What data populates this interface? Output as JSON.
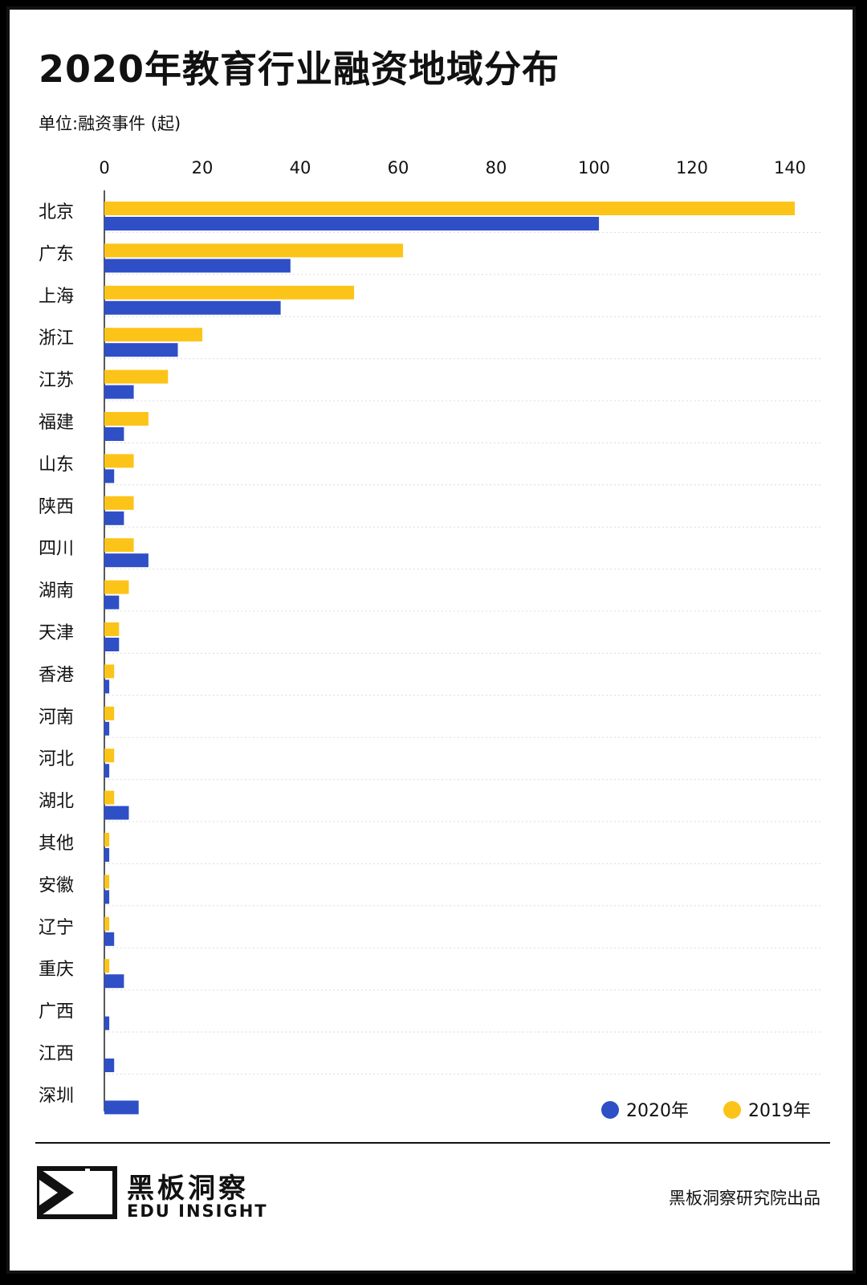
{
  "header": {
    "title": "2020年教育行业融资地域分布",
    "unit": "单位:融资事件 (起)"
  },
  "colors": {
    "series_2020": "#2f4fc6",
    "series_2019": "#fcc419",
    "grid": "#dcdcdc",
    "axis": "#222222"
  },
  "chart_data": {
    "type": "bar",
    "orientation": "horizontal",
    "categories": [
      "北京",
      "广东",
      "上海",
      "浙江",
      "江苏",
      "福建",
      "山东",
      "陕西",
      "四川",
      "湖南",
      "天津",
      "香港",
      "河南",
      "河北",
      "湖北",
      "其他",
      "安徽",
      "辽宁",
      "重庆",
      "广西",
      "江西",
      "深圳"
    ],
    "series": [
      {
        "name": "2019年",
        "color": "#fcc419",
        "values": [
          141,
          61,
          51,
          20,
          13,
          9,
          6,
          6,
          6,
          5,
          3,
          2,
          2,
          2,
          2,
          1,
          1,
          1,
          1,
          0,
          0,
          0
        ]
      },
      {
        "name": "2020年",
        "color": "#2f4fc6",
        "values": [
          101,
          38,
          36,
          15,
          6,
          4,
          2,
          4,
          9,
          3,
          3,
          1,
          1,
          1,
          5,
          1,
          1,
          2,
          4,
          1,
          2,
          7
        ]
      }
    ],
    "xlim": [
      0,
      140
    ],
    "xticks": [
      0,
      20,
      40,
      60,
      80,
      100,
      120,
      140
    ],
    "axis_position": "top",
    "legend": {
      "placement": "bottom-right",
      "order": [
        "2020年",
        "2019年"
      ]
    },
    "grid": true
  },
  "footer": {
    "brand_cn": "黑板洞察",
    "brand_en": "EDU INSIGHT",
    "source": "黑板洞察研究院出品"
  }
}
